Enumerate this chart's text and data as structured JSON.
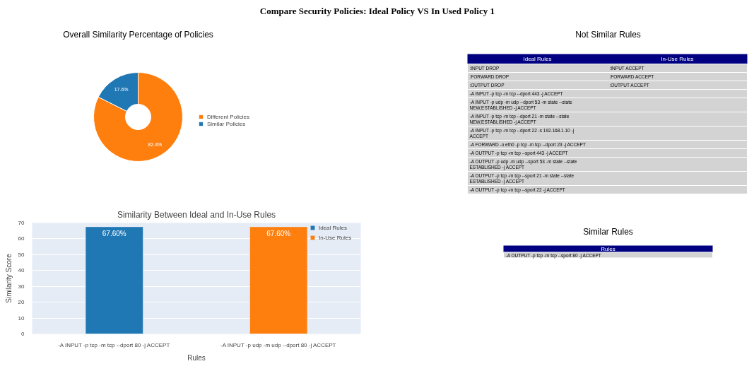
{
  "chart_data": [
    {
      "type": "other",
      "title": "Compare Security Policies: Ideal Policy VS In Used Policy 1"
    },
    {
      "type": "donut",
      "title": "Overall Similarity Percentage of Policies",
      "categories": [
        "Different Policies",
        "Similar Policies"
      ],
      "values": [
        82.4,
        17.6
      ],
      "colors": [
        "#ff7f0e",
        "#1f77b4"
      ],
      "value_labels": [
        "82.4%",
        "17.6%"
      ],
      "legend": "right"
    },
    {
      "type": "other",
      "title": "Not Similar Rules",
      "categories": [
        "Ideal Rules",
        "In-Use Rules"
      ],
      "cell_labels": [
        [
          ":INPUT DROP",
          ":INPUT ACCEPT"
        ],
        [
          ":FORWARD DROP",
          ":FORWARD ACCEPT"
        ],
        [
          ":OUTPUT DROP",
          ":OUTPUT ACCEPT"
        ],
        [
          "-A INPUT -p tcp -m tcp --dport 443 -j ACCEPT",
          null
        ],
        [
          "-A INPUT -p udp -m udp --dport 53 -m state --state NEW,ESTABLISHED -j ACCEPT",
          null
        ],
        [
          "-A INPUT -p tcp -m tcp --dport 21 -m state --state NEW,ESTABLISHED -j ACCEPT",
          null
        ],
        [
          "-A INPUT -p tcp -m tcp --dport 22 -s 192.168.1.10 -j ACCEPT",
          null
        ],
        [
          "-A FORWARD -o eth0 -p tcp -m tcp --dport 23 -j ACCEPT",
          null
        ],
        [
          "-A OUTPUT -p tcp -m tcp --sport 443 -j ACCEPT",
          null
        ],
        [
          "-A OUTPUT -p udp -m udp --sport 53 -m state --state ESTABLISHED -j ACCEPT",
          null
        ],
        [
          "-A OUTPUT -p tcp -m tcp --sport 21 -m state --state ESTABLISHED -j ACCEPT",
          null
        ],
        [
          "-A OUTPUT -p tcp -m tcp --sport 22 -j ACCEPT",
          null
        ]
      ]
    },
    {
      "type": "bar",
      "title": "Similarity Between Ideal and In-Use Rules",
      "xlabel": "Rules",
      "ylabel": "Similarity Score",
      "categories": [
        "-A INPUT -p tcp -m tcp --dport 80 -j ACCEPT",
        "-A INPUT -p udp -m udp --dport 80 -j ACCEPT"
      ],
      "stacked": true,
      "series": [
        {
          "name": "Ideal Rules",
          "color": "#1f77b4",
          "values": [
            67.6,
            null
          ],
          "value_labels": [
            "67.60%",
            null
          ]
        },
        {
          "name": "In-Use Rules",
          "color": "#ff7f0e",
          "values": [
            null,
            67.6
          ],
          "value_labels": [
            null,
            "67.60%"
          ]
        }
      ],
      "ylim": [
        0,
        70
      ],
      "yticks": [
        0,
        10,
        20,
        30,
        40,
        50,
        60,
        70
      ],
      "grid": "y",
      "legend": "top right"
    },
    {
      "type": "other",
      "title": "Similar Rules",
      "categories": [
        "Rules"
      ],
      "cell_labels": [
        [
          "-A OUTPUT -p tcp -m tcp --sport 80 -j ACCEPT"
        ]
      ]
    }
  ]
}
